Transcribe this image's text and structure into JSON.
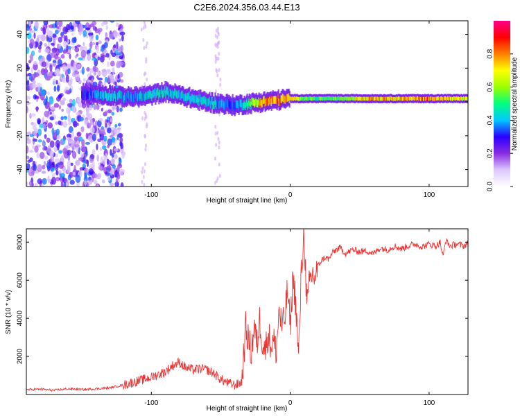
{
  "page": {
    "title": "C2E6.2024.356.03.44.E13"
  },
  "chart_data": [
    {
      "type": "heatmap",
      "title": "C2E6.2024.356.03.44.E13",
      "xlabel": "Height of straight line (km)",
      "ylabel": "Frequency (Hz)",
      "xlim": [
        -190,
        128
      ],
      "ylim": [
        -50,
        48
      ],
      "xticks": [
        -100,
        0,
        100
      ],
      "xtick_labels": [
        "-100",
        "0",
        "100"
      ],
      "yticks": [
        -40,
        -20,
        0,
        20,
        40
      ],
      "ytick_labels": [
        "-40",
        "-20",
        "0",
        "20",
        "40"
      ],
      "ridge": {
        "x": [
          -150,
          -130,
          -120,
          -110,
          -100,
          -90,
          -80,
          -70,
          -60,
          -50,
          -40,
          -30,
          -20,
          -10,
          0,
          10,
          20,
          40,
          60,
          80,
          100,
          120,
          128
        ],
        "y": [
          5,
          4,
          3,
          3,
          4,
          6,
          4,
          2,
          0,
          -1,
          -2,
          -1,
          0,
          1,
          2,
          2,
          2,
          2,
          2,
          2,
          2,
          2,
          2
        ],
        "peak_amplitude": [
          0.3,
          0.45,
          0.4,
          0.4,
          0.45,
          0.45,
          0.45,
          0.45,
          0.45,
          0.4,
          0.35,
          0.5,
          0.8,
          0.85,
          0.75,
          0.6,
          0.55,
          0.6,
          0.8,
          0.75,
          0.85,
          0.7,
          0.7
        ]
      },
      "noise_region_x": [
        -190,
        -120
      ],
      "colorbar": {
        "label": "Normalized spectral amplitude",
        "range": [
          0,
          1
        ],
        "ticks": [
          0.0,
          0.2,
          0.4,
          0.6,
          0.8
        ],
        "tick_labels": [
          "0.0",
          "0.2",
          "0.4",
          "0.6",
          "0.8"
        ],
        "colors": [
          "#ffffff",
          "#dcc8ff",
          "#8a2be2",
          "#2a00ff",
          "#00c8ff",
          "#00ff80",
          "#9aff00",
          "#ffff00",
          "#ff8000",
          "#ff0000",
          "#ff0088"
        ]
      },
      "grid": false
    },
    {
      "type": "line",
      "xlabel": "Height of straight line (km)",
      "ylabel": "SNR (10 * v/v)",
      "xlim": [
        -190,
        128
      ],
      "ylim": [
        0,
        8700
      ],
      "xticks": [
        -100,
        0,
        100
      ],
      "xtick_labels": [
        "-100",
        "0",
        "100"
      ],
      "yticks": [
        2000,
        4000,
        6000,
        8000
      ],
      "ytick_labels": [
        "2000",
        "4000",
        "6000",
        "8000"
      ],
      "color": "#ee3333",
      "series": [
        {
          "x": [
            -190,
            -180,
            -170,
            -160,
            -150,
            -140,
            -130,
            -120,
            -110,
            -100,
            -90,
            -85,
            -80,
            -75,
            -70,
            -65,
            -60,
            -55,
            -50,
            -45,
            -40,
            -37,
            -35,
            -32,
            -30,
            -28,
            -26,
            -24,
            -22,
            -20,
            -18,
            -16,
            -14,
            -12,
            -10,
            -8,
            -6,
            -4,
            -2,
            0,
            2,
            4,
            6,
            8,
            10,
            12,
            14,
            16,
            18,
            20,
            22,
            25,
            28,
            30,
            33,
            36,
            40,
            45,
            50,
            55,
            60,
            65,
            70,
            75,
            80,
            85,
            90,
            95,
            100,
            105,
            108,
            110,
            112,
            115,
            120,
            125,
            128
          ],
          "y": [
            250,
            280,
            220,
            300,
            260,
            300,
            350,
            500,
            700,
            900,
            1200,
            1500,
            1700,
            1400,
            1300,
            1350,
            1300,
            1100,
            800,
            600,
            500,
            550,
            700,
            3500,
            2800,
            2200,
            3600,
            2600,
            3900,
            2800,
            2300,
            3200,
            2600,
            2800,
            2300,
            4500,
            3500,
            3900,
            5500,
            3500,
            6200,
            4800,
            1900,
            6400,
            8600,
            4500,
            5900,
            6300,
            6200,
            6700,
            7000,
            7200,
            7100,
            7400,
            7600,
            7700,
            7400,
            7600,
            7500,
            7550,
            7400,
            7700,
            7600,
            7800,
            7650,
            7800,
            7900,
            7750,
            7900,
            7800,
            8000,
            7200,
            8100,
            7800,
            7900,
            7800,
            7950
          ]
        }
      ],
      "grid": false
    }
  ]
}
